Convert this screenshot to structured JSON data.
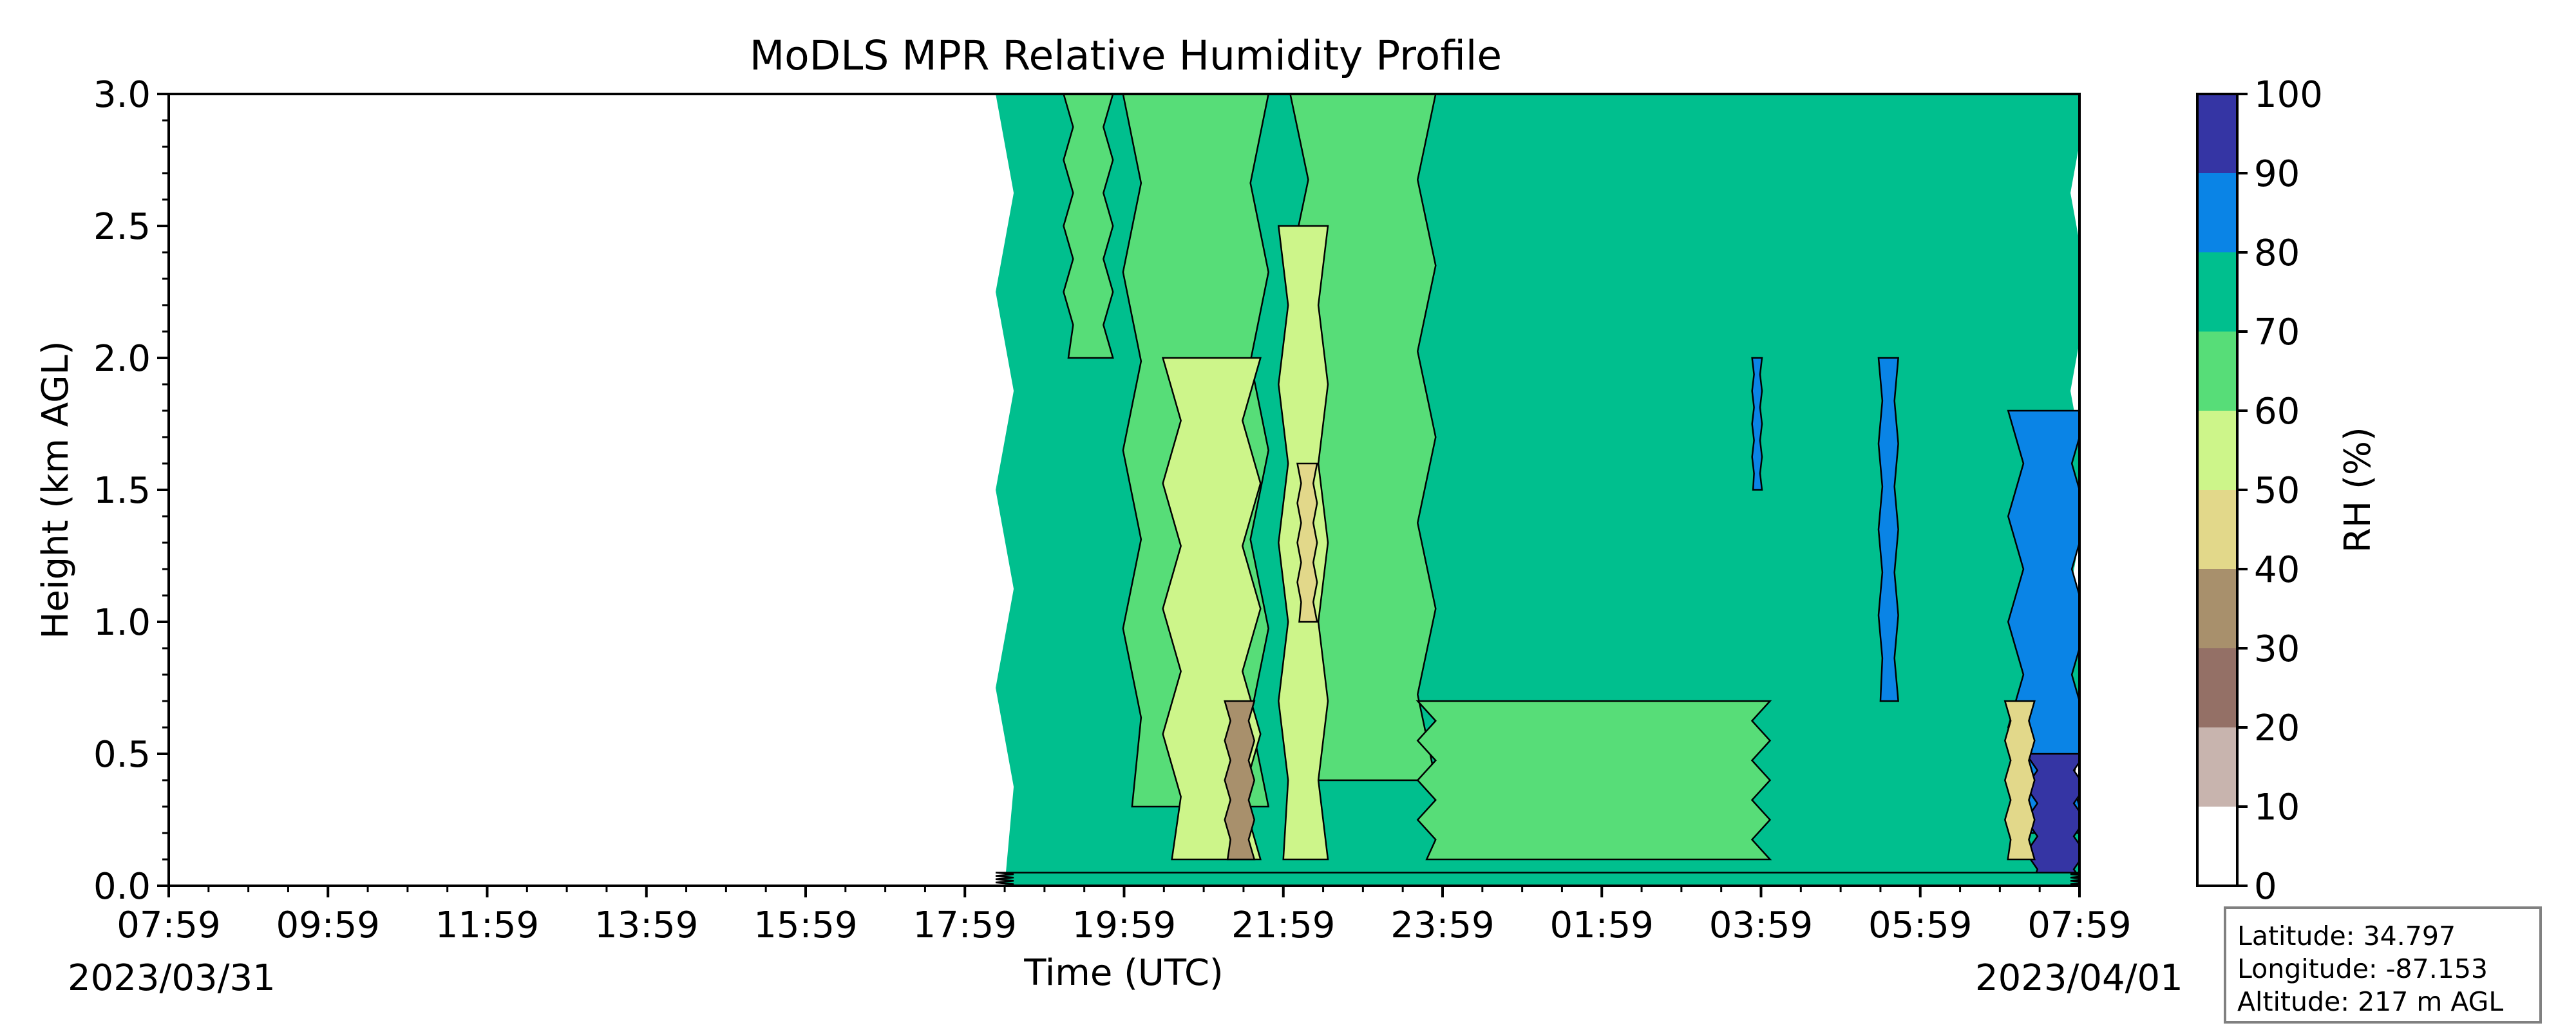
{
  "chart_data": {
    "type": "heatmap",
    "title": "MoDLS MPR Relative Humidity Profile",
    "xlabel": "Time (UTC)",
    "ylabel": "Height (km AGL)",
    "x_tick_labels": [
      "07:59",
      "09:59",
      "11:59",
      "13:59",
      "15:59",
      "17:59",
      "19:59",
      "21:59",
      "23:59",
      "01:59",
      "03:59",
      "05:59",
      "07:59"
    ],
    "x_range_hours_utc": [
      0,
      24
    ],
    "x_start_date": "2023/03/31",
    "x_end_date": "2023/04/01",
    "y_tick_labels": [
      "0.0",
      "0.5",
      "1.0",
      "1.5",
      "2.0",
      "2.5",
      "3.0"
    ],
    "ylim": [
      0,
      3.0
    ],
    "data_begins_at_hours": 10.5,
    "colorbar": {
      "label": "RH (%)",
      "levels": [
        0,
        10,
        20,
        30,
        40,
        50,
        60,
        70,
        80,
        90,
        100
      ],
      "tick_labels": [
        "0",
        "10",
        "20",
        "30",
        "40",
        "50",
        "60",
        "70",
        "80",
        "90",
        "100"
      ],
      "colors": [
        "#ffffff",
        "#c8b4ae",
        "#947066",
        "#a8906c",
        "#e2d88a",
        "#cdf58a",
        "#57dd78",
        "#00bf8e",
        "#0a84e6",
        "#3535a4"
      ]
    },
    "features": [
      {
        "x_range": [
          10.5,
          24
        ],
        "y_range": [
          0,
          3.0
        ],
        "rh_class": "70-80"
      },
      {
        "x_range": [
          11.3,
          11.8
        ],
        "y_range": [
          2.0,
          3.0
        ],
        "rh_class": "60-70"
      },
      {
        "x_range": [
          12.1,
          13.7
        ],
        "y_range": [
          0.3,
          3.0
        ],
        "rh_class": "60-70"
      },
      {
        "x_range": [
          14.2,
          15.8
        ],
        "y_range": [
          0.4,
          3.0
        ],
        "rh_class": "60-70"
      },
      {
        "x_range": [
          15.8,
          20.0
        ],
        "y_range": [
          0.1,
          0.7
        ],
        "rh_class": "60-70"
      },
      {
        "x_range": [
          12.6,
          13.6
        ],
        "y_range": [
          0.1,
          2.0
        ],
        "rh_class": "50-60"
      },
      {
        "x_range": [
          14.0,
          14.5
        ],
        "y_range": [
          0.1,
          2.5
        ],
        "rh_class": "50-60"
      },
      {
        "x_range": [
          13.3,
          13.6
        ],
        "y_range": [
          0.1,
          0.7
        ],
        "rh_class": "30-40"
      },
      {
        "x_range": [
          14.2,
          14.4
        ],
        "y_range": [
          1.0,
          1.6
        ],
        "rh_class": "40-50"
      },
      {
        "x_range": [
          19.9,
          20.0
        ],
        "y_range": [
          1.5,
          2.0
        ],
        "rh_class": "80-90"
      },
      {
        "x_range": [
          21.5,
          21.7
        ],
        "y_range": [
          0.7,
          2.0
        ],
        "rh_class": "80-90"
      },
      {
        "x_range": [
          23.2,
          24.0
        ],
        "y_range": [
          0.2,
          1.8
        ],
        "rh_class": "80-90"
      },
      {
        "x_range": [
          23.4,
          24.0
        ],
        "y_range": [
          0,
          0.5
        ],
        "rh_class": "90-100"
      },
      {
        "x_range": [
          23.1,
          23.4
        ],
        "y_range": [
          0.1,
          0.7
        ],
        "rh_class": "40-50"
      },
      {
        "x_range": [
          10.5,
          24.0
        ],
        "y_range": [
          0,
          0.05
        ],
        "rh_class": "70-80"
      }
    ]
  },
  "info_box": {
    "latitude": "Latitude: 34.797",
    "longitude": "Longitude: -87.153",
    "altitude": "Altitude: 217 m AGL"
  }
}
